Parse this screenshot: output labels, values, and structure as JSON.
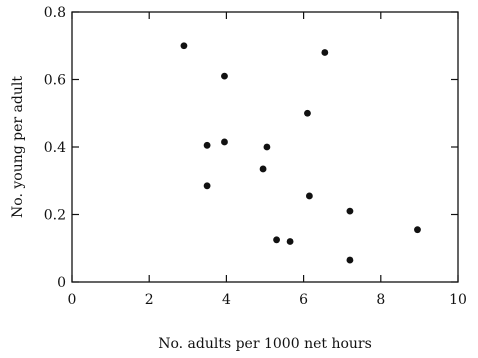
{
  "chart_data": {
    "type": "scatter",
    "title": "",
    "xlabel": "No. adults per 1000 net hours",
    "ylabel": "No. young per adult",
    "xlim": [
      0,
      10
    ],
    "ylim": [
      0,
      0.8
    ],
    "xticks": [
      0,
      2,
      4,
      6,
      8,
      10
    ],
    "xtick_labels": [
      "0",
      "2",
      "4",
      "6",
      "8",
      "10"
    ],
    "yticks": [
      0,
      0.2,
      0.4,
      0.6,
      0.8
    ],
    "ytick_labels": [
      "0",
      "0.2",
      "0.4",
      "0.6",
      "0.8"
    ],
    "grid": false,
    "legend": "none",
    "marker_color": "#111111",
    "series": [
      {
        "points": [
          {
            "x": 2.9,
            "y": 0.7
          },
          {
            "x": 3.95,
            "y": 0.61
          },
          {
            "x": 6.55,
            "y": 0.68
          },
          {
            "x": 6.1,
            "y": 0.5
          },
          {
            "x": 3.5,
            "y": 0.405
          },
          {
            "x": 3.95,
            "y": 0.415
          },
          {
            "x": 5.05,
            "y": 0.4
          },
          {
            "x": 4.95,
            "y": 0.335
          },
          {
            "x": 3.5,
            "y": 0.285
          },
          {
            "x": 6.15,
            "y": 0.255
          },
          {
            "x": 7.2,
            "y": 0.21
          },
          {
            "x": 5.3,
            "y": 0.125
          },
          {
            "x": 5.65,
            "y": 0.12
          },
          {
            "x": 7.2,
            "y": 0.065
          },
          {
            "x": 8.95,
            "y": 0.155
          }
        ]
      }
    ]
  }
}
